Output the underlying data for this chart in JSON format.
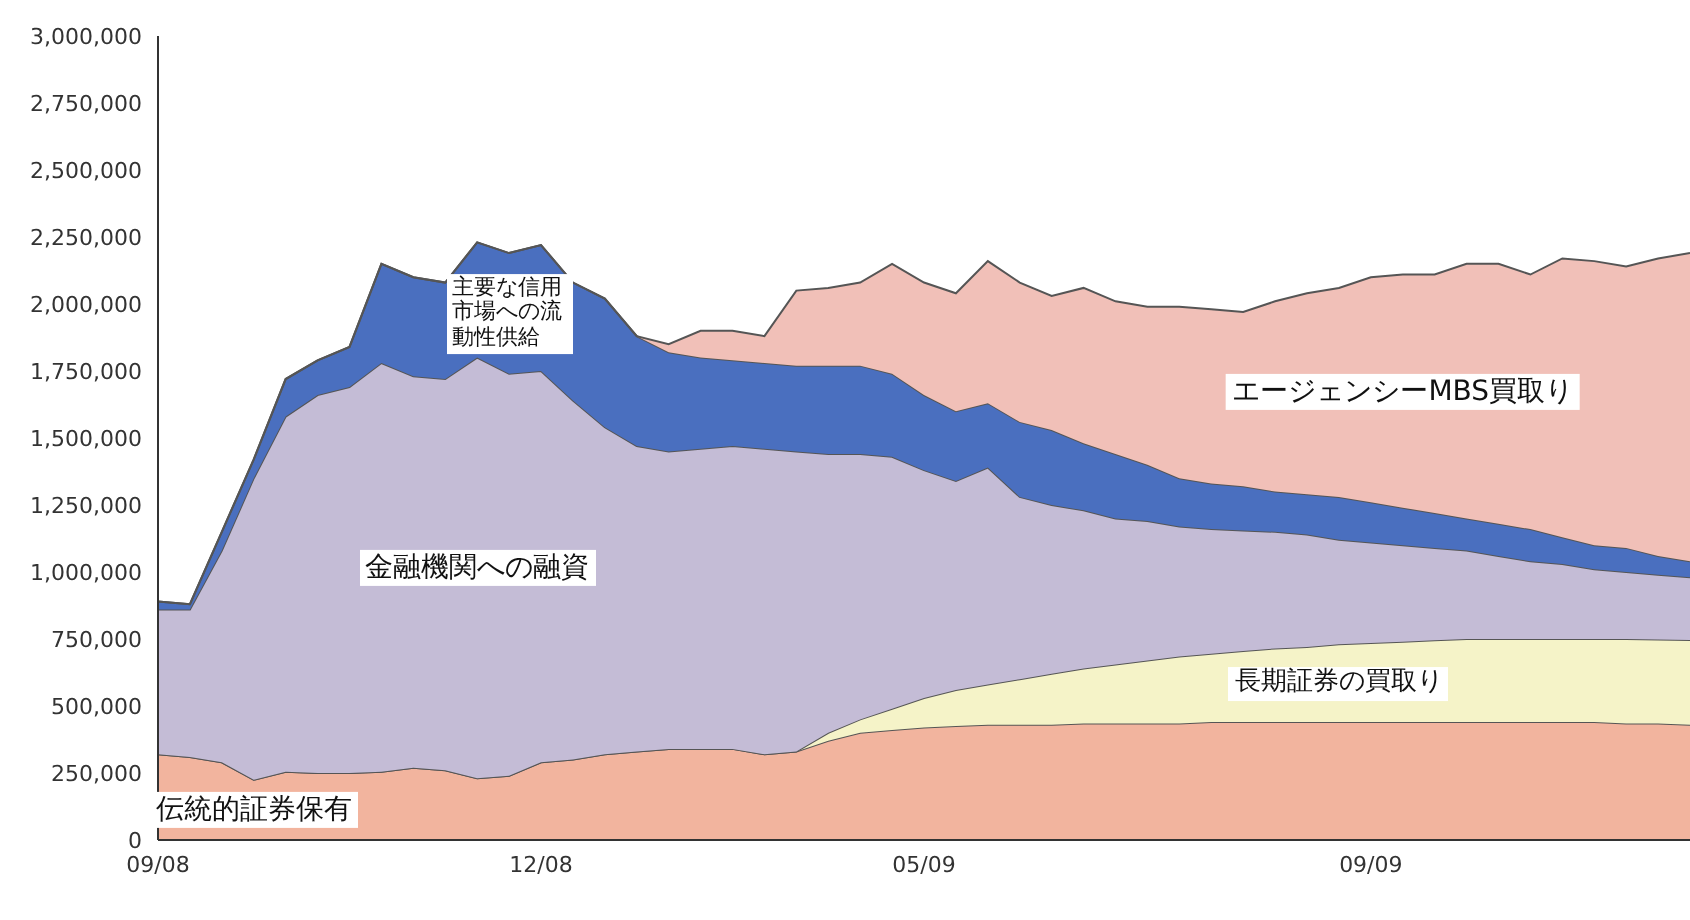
{
  "chart_data": {
    "type": "area",
    "stacked": true,
    "legend": false,
    "grid": false,
    "categories": [
      "09/08",
      null,
      null,
      null,
      null,
      null,
      null,
      null,
      null,
      null,
      null,
      null,
      "12/08",
      null,
      null,
      null,
      null,
      null,
      null,
      null,
      null,
      null,
      null,
      null,
      "05/09",
      null,
      null,
      null,
      null,
      null,
      null,
      null,
      null,
      null,
      null,
      null,
      null,
      null,
      "09/09",
      null,
      null,
      null,
      null,
      null,
      null,
      null,
      null,
      null,
      null
    ],
    "ylim": [
      0,
      3000000
    ],
    "yticks": [
      0,
      {
        "value": 250000,
        "label": "250,000"
      },
      {
        "value": 500000,
        "label": "500,000"
      },
      {
        "value": 750000,
        "label": "750,000"
      },
      {
        "value": 1000000,
        "label": "1,000,000"
      },
      {
        "value": 1250000,
        "label": "1,250,000"
      },
      {
        "value": 1500000,
        "label": "1,500,000"
      },
      {
        "value": 1750000,
        "label": "1,750,000"
      },
      {
        "value": 2000000,
        "label": "2,000,000"
      },
      {
        "value": 2250000,
        "label": "2,250,000"
      },
      {
        "value": 2500000,
        "label": "2,500,000"
      },
      {
        "value": 2750000,
        "label": "2,750,000"
      },
      {
        "value": 3000000,
        "label": "3,000,000"
      }
    ],
    "series": [
      {
        "name": "伝統的証券保有",
        "color": "#f2b49e",
        "values": [
          320000,
          310000,
          290000,
          225000,
          255000,
          250000,
          250000,
          255000,
          270000,
          260000,
          230000,
          240000,
          290000,
          300000,
          320000,
          330000,
          340000,
          340000,
          340000,
          320000,
          330000,
          370000,
          400000,
          410000,
          420000,
          425000,
          430000,
          430000,
          430000,
          435000,
          435000,
          435000,
          435000,
          440000,
          440000,
          440000,
          440000,
          440000,
          440000,
          440000,
          440000,
          440000,
          440000,
          440000,
          440000,
          440000,
          435000,
          435000,
          430000
        ]
      },
      {
        "name": "長期証券の買取り",
        "color": "#f5f3c8",
        "values": [
          0,
          0,
          0,
          0,
          0,
          0,
          0,
          0,
          0,
          0,
          0,
          0,
          0,
          0,
          0,
          0,
          0,
          0,
          0,
          0,
          0,
          30000,
          50000,
          80000,
          110000,
          135000,
          150000,
          170000,
          190000,
          205000,
          220000,
          235000,
          250000,
          255000,
          265000,
          275000,
          280000,
          290000,
          295000,
          300000,
          305000,
          310000,
          310000,
          310000,
          310000,
          310000,
          315000,
          313000,
          316000
        ]
      },
      {
        "name": "金融機関への融資",
        "color": "#c4bcd6",
        "values": [
          540000,
          550000,
          790000,
          1125000,
          1325000,
          1410000,
          1440000,
          1525000,
          1460000,
          1460000,
          1570000,
          1500000,
          1460000,
          1340000,
          1220000,
          1140000,
          1110000,
          1120000,
          1130000,
          1140000,
          1120000,
          1040000,
          990000,
          940000,
          850000,
          780000,
          810000,
          680000,
          630000,
          590000,
          545000,
          520000,
          485000,
          465000,
          450000,
          435000,
          420000,
          390000,
          375000,
          360000,
          345000,
          330000,
          310000,
          290000,
          280000,
          260000,
          250000,
          242000,
          234000
        ]
      },
      {
        "name": "主要な信用市場への流動性供給",
        "color": "#4a6fbf",
        "values": [
          30000,
          20000,
          70000,
          70000,
          140000,
          130000,
          150000,
          370000,
          370000,
          360000,
          430000,
          450000,
          470000,
          440000,
          480000,
          410000,
          370000,
          340000,
          320000,
          320000,
          320000,
          330000,
          330000,
          310000,
          280000,
          260000,
          240000,
          280000,
          280000,
          250000,
          240000,
          210000,
          180000,
          170000,
          165000,
          150000,
          150000,
          160000,
          150000,
          140000,
          130000,
          120000,
          120000,
          120000,
          100000,
          90000,
          90000,
          70000,
          60000
        ]
      },
      {
        "name": "エージェンシーMBS買取り",
        "color": "#f1c0b8",
        "values": [
          0,
          0,
          0,
          0,
          0,
          0,
          0,
          0,
          0,
          0,
          0,
          0,
          0,
          0,
          0,
          0,
          30000,
          100000,
          110000,
          100000,
          280000,
          290000,
          310000,
          410000,
          420000,
          440000,
          530000,
          520000,
          500000,
          580000,
          570000,
          590000,
          640000,
          650000,
          650000,
          710000,
          750000,
          780000,
          840000,
          870000,
          890000,
          950000,
          970000,
          950000,
          1040000,
          1060000,
          1050000,
          1110000,
          1150000
        ]
      }
    ]
  }
}
